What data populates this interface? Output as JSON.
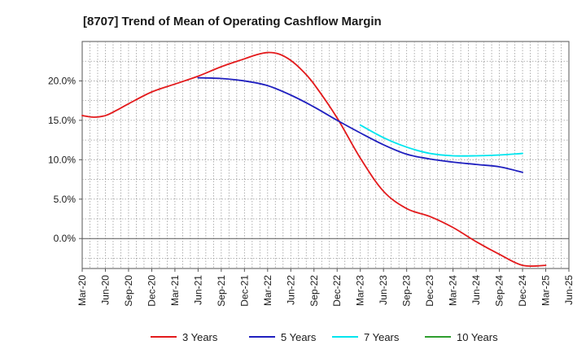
{
  "chart_data": {
    "type": "line",
    "title": "[8707]  Trend of Mean of Operating Cashflow Margin",
    "xlabel": "",
    "ylabel": "",
    "ylim": [
      -3.8,
      25
    ],
    "yticks": [
      0,
      5,
      10,
      15,
      20
    ],
    "ytick_labels": [
      "0.0%",
      "5.0%",
      "10.0%",
      "15.0%",
      "20.0%"
    ],
    "xlim": [
      0,
      21
    ],
    "xtick_labels": [
      "Mar-20",
      "Jun-20",
      "Sep-20",
      "Dec-20",
      "Mar-21",
      "Jun-21",
      "Sep-21",
      "Dec-21",
      "Mar-22",
      "Jun-22",
      "Sep-22",
      "Dec-22",
      "Mar-23",
      "Jun-23",
      "Sep-23",
      "Dec-23",
      "Mar-24",
      "Jun-24",
      "Sep-24",
      "Dec-24",
      "Mar-25",
      "Jun-25"
    ],
    "grid": true,
    "legend_position": "bottom",
    "series": [
      {
        "name": "3 Years",
        "color": "#e31a1c",
        "x": [
          0,
          0.5,
          1,
          1.5,
          2,
          3,
          4,
          5,
          6,
          7,
          7.5,
          8,
          8.5,
          9,
          9.5,
          10,
          11,
          12,
          13,
          14,
          15,
          16,
          17,
          18,
          19,
          20
        ],
        "values": [
          15.6,
          15.4,
          15.6,
          16.3,
          17.1,
          18.6,
          19.6,
          20.6,
          21.8,
          22.8,
          23.3,
          23.6,
          23.4,
          22.6,
          21.3,
          19.6,
          15.3,
          10.2,
          6.0,
          3.8,
          2.8,
          1.4,
          -0.4,
          -2.0,
          -3.4,
          -3.4
        ]
      },
      {
        "name": "5 Years",
        "color": "#1f1fbf",
        "x": [
          5,
          6,
          7,
          8,
          9,
          10,
          11,
          12,
          13,
          14,
          15,
          16,
          17,
          18,
          19
        ],
        "values": [
          20.4,
          20.3,
          20.0,
          19.4,
          18.2,
          16.7,
          15.0,
          13.4,
          11.9,
          10.7,
          10.1,
          9.7,
          9.4,
          9.1,
          8.4
        ]
      },
      {
        "name": "7 Years",
        "color": "#00e5ee",
        "x": [
          12,
          13,
          14,
          15,
          16,
          17,
          18,
          19
        ],
        "values": [
          14.4,
          12.8,
          11.6,
          10.8,
          10.5,
          10.5,
          10.6,
          10.8
        ]
      },
      {
        "name": "10 Years",
        "color": "#2e9e2e",
        "x": [],
        "values": []
      }
    ]
  }
}
